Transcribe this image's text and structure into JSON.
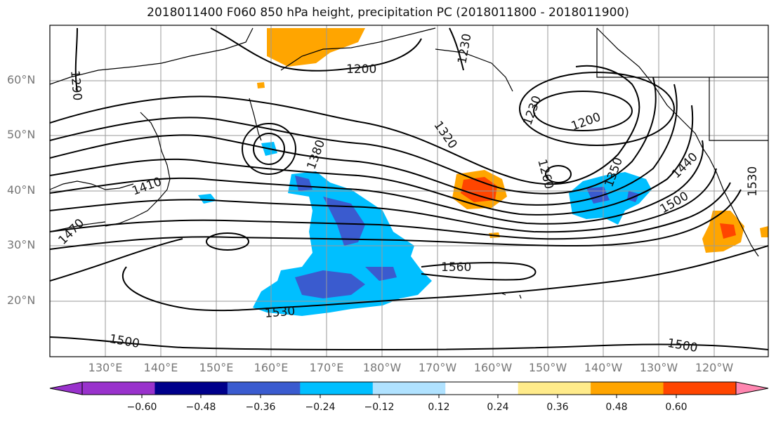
{
  "title": "2018011400 F060 850 hPa height, precipitation PC (2018011800 - 2018011900)",
  "lat_labels": [
    "60°N",
    "50°N",
    "40°N",
    "30°N",
    "20°N"
  ],
  "lon_labels": [
    "130°E",
    "140°E",
    "150°E",
    "160°E",
    "170°E",
    "180°W",
    "170°W",
    "160°W",
    "150°W",
    "140°W",
    "130°W",
    "120°W"
  ],
  "contour_labels": [
    "1290",
    "1200",
    "1230",
    "1230",
    "1200",
    "1320",
    "1260",
    "1350",
    "1380",
    "1410",
    "1440",
    "1470",
    "1500",
    "1530",
    "1560",
    "1530",
    "1500",
    "1500"
  ],
  "colorbar": {
    "ticks": [
      "−0.60",
      "−0.48",
      "−0.36",
      "−0.24",
      "−0.12",
      "0.12",
      "0.24",
      "0.36",
      "0.48",
      "0.60"
    ],
    "colors": [
      "#9932cc",
      "#00008b",
      "#3a5bcf",
      "#00bfff",
      "#b0e2ff",
      "#ffffff",
      "#ffeb8a",
      "#ffa500",
      "#ff4500",
      "#b22222",
      "#ff86b0"
    ]
  }
}
